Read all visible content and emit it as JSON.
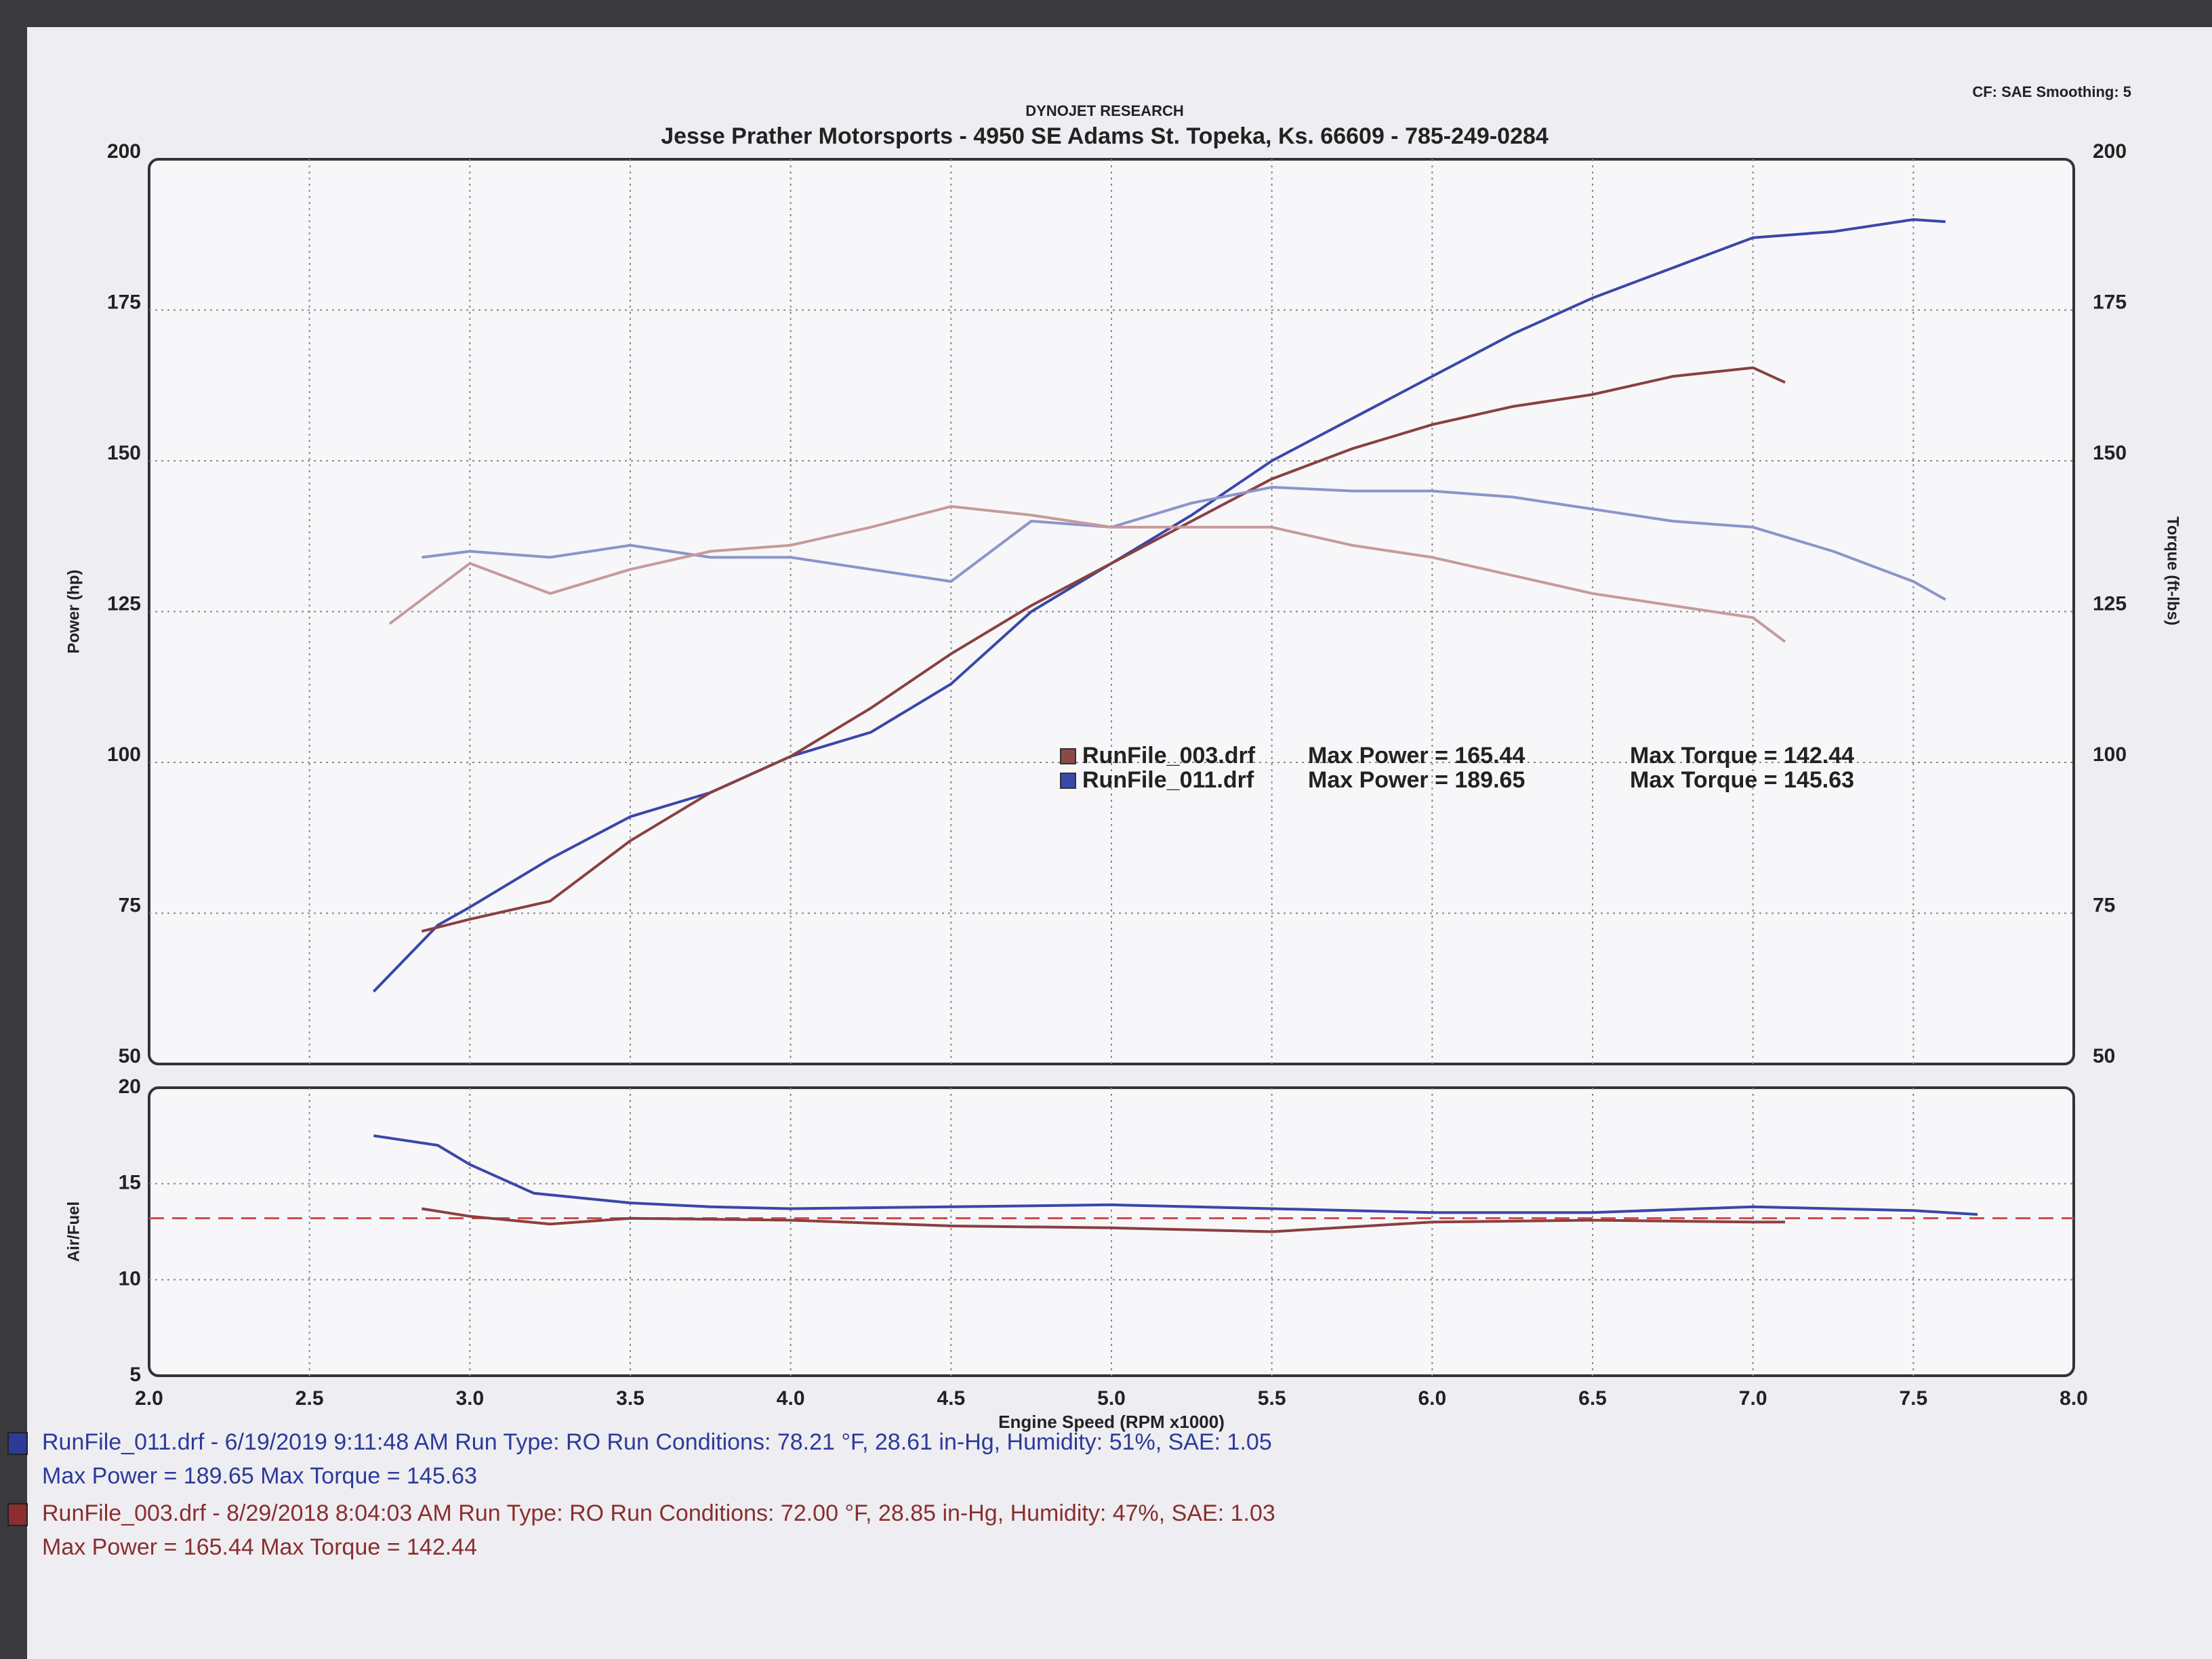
{
  "header": {
    "brand": "DYNOJET RESEARCH",
    "address": "Jesse Prather Motorsports - 4950 SE Adams St.    Topeka, Ks.  66609 - 785-249-0284",
    "settings": "CF: SAE  Smoothing: 5"
  },
  "chart_data": [
    {
      "type": "line",
      "ylabel": "Power (hp)",
      "y2label": "Torque (ft-lbs)",
      "xlim": [
        2,
        8
      ],
      "ylim": [
        50,
        200
      ],
      "yticks": [
        50,
        75,
        100,
        125,
        150,
        175,
        200
      ],
      "y2lim": [
        50,
        200
      ],
      "y2ticks": [
        50,
        75,
        100,
        125,
        150,
        175,
        200
      ],
      "grid": true,
      "legend": [
        {
          "file": "RunFile_003.drf",
          "power": "Max Power = 165.44",
          "torque": "Max Torque = 142.44",
          "color": "#8a4a48"
        },
        {
          "file": "RunFile_011.drf",
          "power": "Max Power = 189.65",
          "torque": "Max Torque = 145.63",
          "color": "#3a4aa8"
        }
      ],
      "series": [
        {
          "color": "#3a47a8",
          "x": [
            2.7,
            2.9,
            3.0,
            3.25,
            3.5,
            3.75,
            4.0,
            4.25,
            4.5,
            4.75,
            5.0,
            5.25,
            5.5,
            5.75,
            6.0,
            6.25,
            6.5,
            6.75,
            7.0,
            7.25,
            7.5,
            7.6
          ],
          "values": [
            62,
            73,
            76,
            84,
            91,
            95,
            101,
            105,
            113,
            125,
            133,
            141,
            150,
            157,
            164,
            171,
            177,
            182,
            187,
            188,
            190,
            189.65
          ]
        },
        {
          "color": "#8a4040",
          "x": [
            2.85,
            3.0,
            3.25,
            3.5,
            3.75,
            4.0,
            4.25,
            4.5,
            4.75,
            5.0,
            5.25,
            5.5,
            5.75,
            6.0,
            6.25,
            6.5,
            6.75,
            7.0,
            7.1
          ],
          "values": [
            72,
            74,
            77,
            87,
            95,
            101,
            109,
            118,
            126,
            133,
            140,
            147,
            152,
            156,
            159,
            161,
            164,
            165.44,
            163
          ]
        },
        {
          "color": "#8c95c8",
          "axis": "y2",
          "x": [
            2.85,
            3.0,
            3.25,
            3.5,
            3.75,
            4.0,
            4.25,
            4.5,
            4.75,
            5.0,
            5.25,
            5.5,
            5.75,
            6.0,
            6.25,
            6.5,
            6.75,
            7.0,
            7.25,
            7.5,
            7.6
          ],
          "values": [
            134,
            135,
            134,
            136,
            134,
            134,
            132,
            130,
            140,
            139,
            143,
            145.63,
            145,
            145,
            144,
            142,
            140,
            139,
            135,
            130,
            127
          ]
        },
        {
          "color": "#c79a9a",
          "axis": "y2",
          "x": [
            2.75,
            3.0,
            3.25,
            3.5,
            3.75,
            4.0,
            4.25,
            4.5,
            4.75,
            5.0,
            5.25,
            5.5,
            5.75,
            6.0,
            6.25,
            6.5,
            6.75,
            7.0,
            7.1
          ],
          "values": [
            123,
            133,
            128,
            132,
            135,
            136,
            139,
            142.44,
            141,
            139,
            139,
            139,
            136,
            134,
            131,
            128,
            126,
            124,
            120
          ]
        }
      ]
    },
    {
      "type": "line",
      "ylabel": "Air/Fuel",
      "xlabel": "Engine Speed (RPM x1000)",
      "xlim": [
        2,
        8
      ],
      "xticks": [
        {
          "value": 2,
          "label": "2.0"
        },
        2.5,
        {
          "value": 3,
          "label": "3.0"
        },
        3.5,
        {
          "value": 4,
          "label": "4.0"
        },
        4.5,
        {
          "value": 5,
          "label": "5.0"
        },
        5.5,
        {
          "value": 6,
          "label": "6.0"
        },
        6.5,
        {
          "value": 7,
          "label": "7.0"
        },
        7.5,
        {
          "value": 8,
          "label": "8.0"
        }
      ],
      "ylim": [
        5,
        20
      ],
      "yticks": [
        5,
        10,
        15,
        20
      ],
      "grid": true,
      "reference": 13.2,
      "reference_color": "#d04848",
      "series": [
        {
          "color": "#3a47a8",
          "x": [
            2.7,
            2.9,
            3.0,
            3.2,
            3.5,
            3.75,
            4.0,
            4.5,
            5.0,
            5.5,
            6.0,
            6.5,
            7.0,
            7.5,
            7.7
          ],
          "values": [
            17.5,
            17,
            16,
            14.5,
            14,
            13.8,
            13.7,
            13.8,
            13.9,
            13.7,
            13.5,
            13.5,
            13.8,
            13.6,
            13.4
          ]
        },
        {
          "color": "#8a4040",
          "x": [
            2.85,
            3.0,
            3.25,
            3.5,
            4.0,
            4.5,
            5.0,
            5.5,
            6.0,
            6.5,
            7.0,
            7.1
          ],
          "values": [
            13.7,
            13.3,
            12.9,
            13.2,
            13.1,
            12.8,
            12.7,
            12.5,
            13.0,
            13.1,
            13.0,
            13.0
          ]
        }
      ]
    }
  ],
  "footer": [
    {
      "line1": "RunFile_011.drf - 6/19/2019 9:11:48 AM  Run Type: RO  Run Conditions: 78.21 °F, 28.61 in-Hg,  Humidity:  51%,  SAE: 1.05",
      "line2": "Max Power = 189.65  Max Torque = 145.63",
      "color": "#2c3a9a"
    },
    {
      "line1": "RunFile_003.drf - 8/29/2018 8:04:03 AM  Run Type: RO  Run Conditions: 72.00 °F, 28.85 in-Hg,  Humidity:  47%,  SAE: 1.03",
      "line2": "Max Power = 165.44  Max Torque = 142.44",
      "color": "#8a2e2e"
    }
  ]
}
